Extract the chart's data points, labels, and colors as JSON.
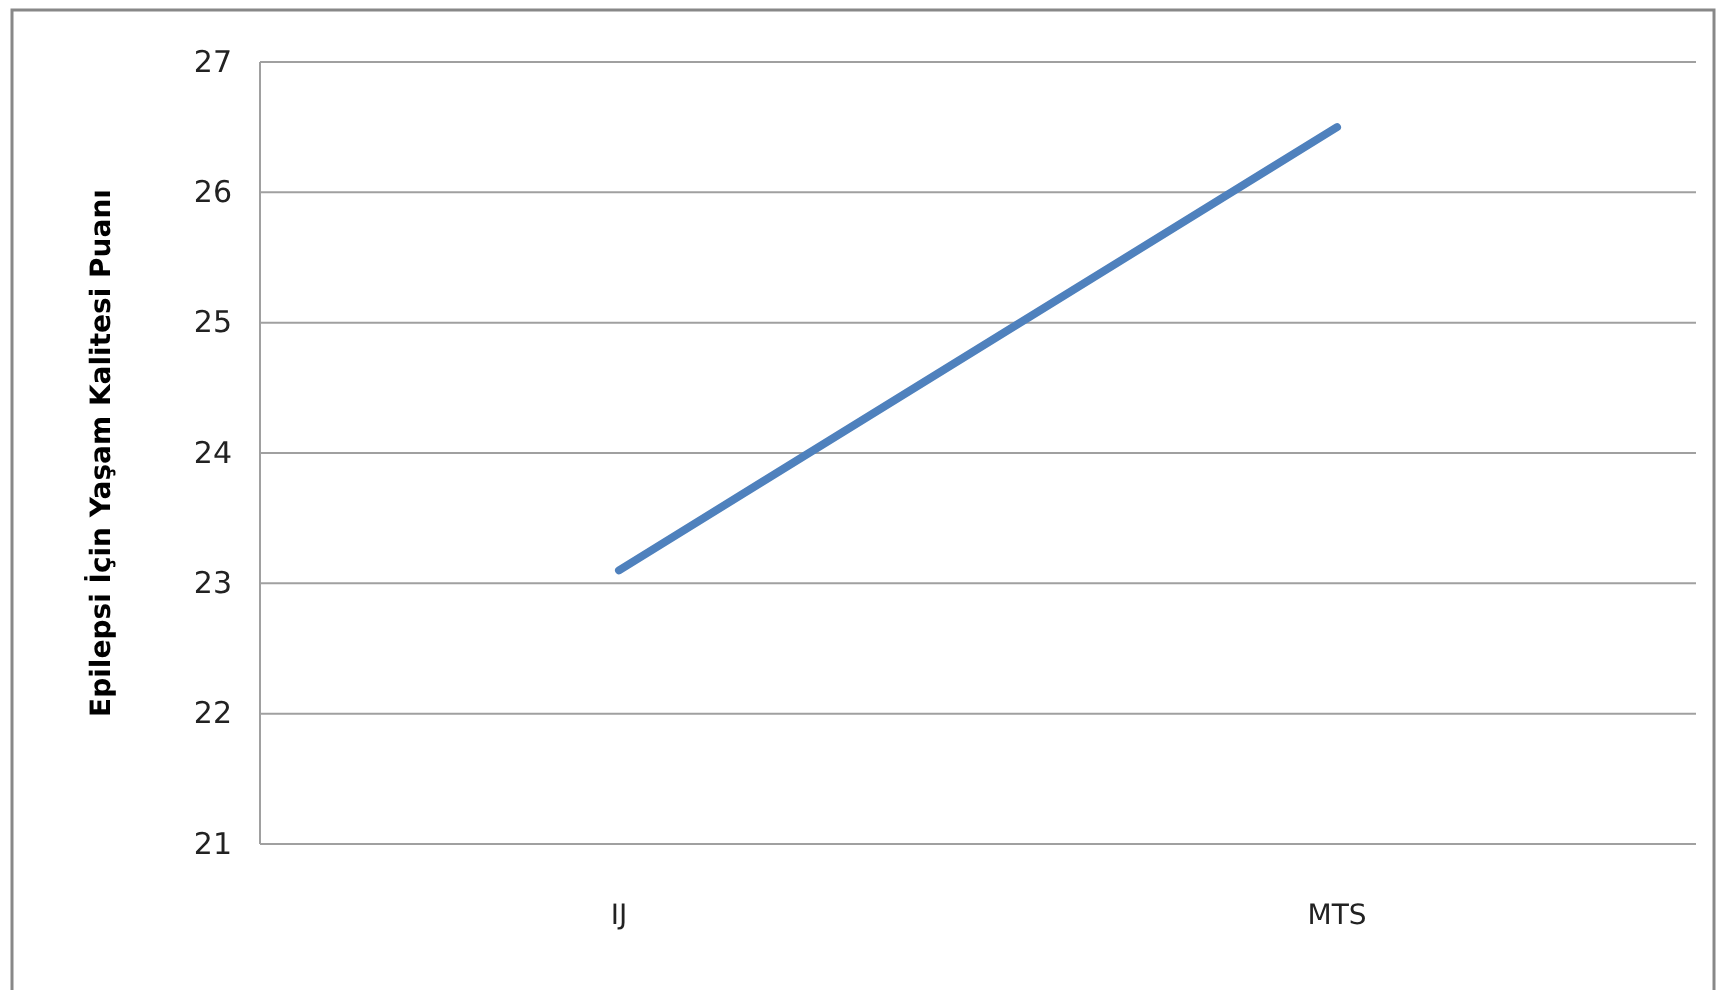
{
  "chart_data": {
    "type": "line",
    "ylabel": "Epilepsi İçin Yaşam Kalitesi Puanı",
    "categories": [
      "IJ",
      "MTS"
    ],
    "series": [
      {
        "color": "#4f81bd",
        "values": [
          23.1,
          26.5
        ]
      }
    ],
    "ylim": [
      21,
      27
    ],
    "yticks": [
      21,
      22,
      23,
      24,
      25,
      26,
      27
    ],
    "grid": "y",
    "marker": "none"
  }
}
